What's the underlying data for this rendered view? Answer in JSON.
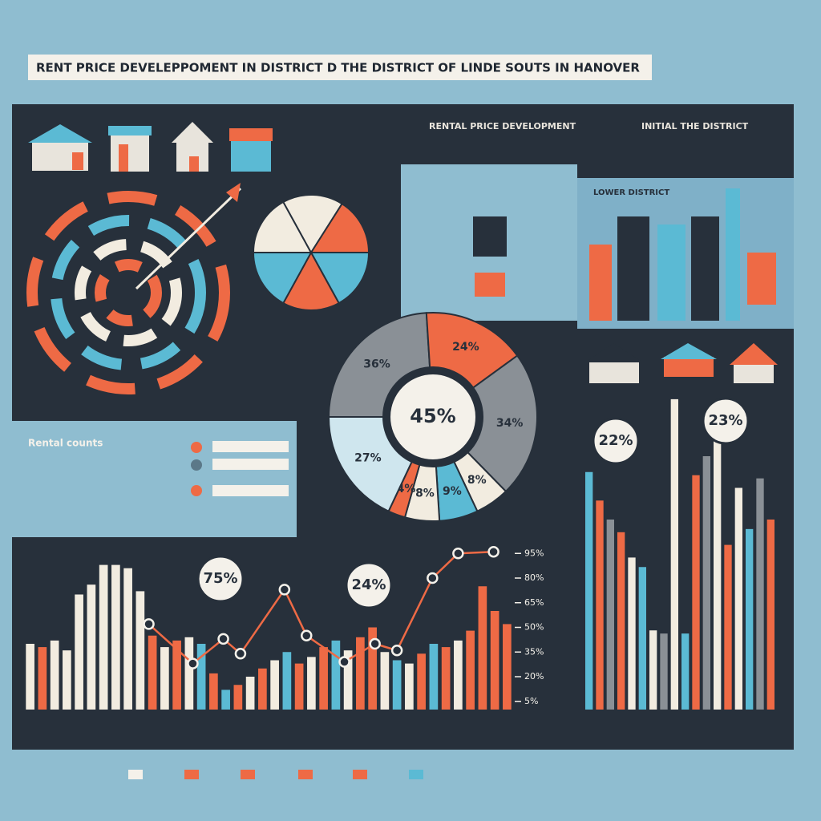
{
  "header": {
    "title": "RENT PRICE DEVELEPPOMENT IN DISTRICT D THE DISTRICT OF LINDE SOUTS IN HANOVER"
  },
  "panels": {
    "rental_heading": "RENTAL PRICE DEVELOPMENT",
    "initial_heading": "INITIAL THE DISTRICT",
    "left_heading": "Rental counts",
    "district_label": "LOWER DISTRICT"
  },
  "chart_data": [
    {
      "type": "pie",
      "values": [
        17,
        17,
        16,
        17,
        16,
        17
      ],
      "colors": [
        "#f2ece0",
        "#f2ece0",
        "#ee6a45",
        "#5bbad4",
        "#ee6a45",
        "#5bbad4"
      ]
    },
    {
      "type": "donut",
      "values": [
        36,
        24,
        34,
        8,
        9,
        8,
        4,
        27
      ],
      "value_labels": [
        "36%",
        "24%",
        "34%",
        "8%",
        "9%",
        "8%",
        "4%",
        "27%"
      ],
      "colors": [
        "#8a9096",
        "#ee6a45",
        "#8a9096",
        "#f2ece0",
        "#5bbad4",
        "#f2ece0",
        "#ee6a45",
        "#cfe6ee"
      ],
      "center_label": "45%"
    },
    {
      "type": "bar",
      "values": [
        40,
        38,
        42,
        36,
        70,
        76,
        88,
        88,
        86,
        72,
        45,
        38,
        42,
        44,
        40,
        22,
        12,
        15,
        20,
        25,
        30,
        35,
        28,
        32,
        38,
        42,
        36,
        44,
        50,
        35,
        30,
        28,
        34,
        40,
        38,
        42,
        48,
        75,
        60,
        52
      ],
      "colors": [
        "#f2ece0",
        "#ee6a45",
        "#f2ece0",
        "#f2ece0",
        "#f2ece0",
        "#f2ece0",
        "#f2ece0",
        "#f2ece0",
        "#f2ece0",
        "#f2ece0",
        "#ee6a45",
        "#f2ece0",
        "#ee6a45",
        "#f2ece0",
        "#5bbad4",
        "#ee6a45",
        "#5bbad4",
        "#ee6a45",
        "#f2ece0",
        "#ee6a45",
        "#f2ece0",
        "#5bbad4",
        "#ee6a45",
        "#f2ece0",
        "#ee6a45",
        "#5bbad4",
        "#f2ece0",
        "#ee6a45",
        "#ee6a45",
        "#f2ece0",
        "#5bbad4",
        "#f2ece0",
        "#ee6a45",
        "#5bbad4",
        "#ee6a45",
        "#f2ece0",
        "#ee6a45",
        "#ee6a45",
        "#ee6a45",
        "#ee6a45"
      ],
      "line": {
        "x": [
          10.2,
          13.8,
          16.3,
          17.7,
          21.3,
          23.1,
          26.2,
          28.7,
          30.5,
          33.4,
          35.5,
          38.4
        ],
        "values": [
          52,
          28,
          43,
          34,
          73,
          45,
          29,
          40,
          36,
          80,
          95,
          96
        ]
      },
      "xlim": [
        0,
        40
      ],
      "ylim": [
        0,
        100
      ],
      "yticks": [
        {
          "value": 5,
          "label": "5%"
        },
        {
          "value": 20,
          "label": "20%"
        },
        {
          "value": 35,
          "label": "35%"
        },
        {
          "value": 50,
          "label": "50%"
        },
        {
          "value": 65,
          "label": "65%"
        },
        {
          "value": 80,
          "label": "80%"
        },
        {
          "value": 95,
          "label": "95%"
        }
      ],
      "annotations": [
        "75%",
        "24%"
      ]
    },
    {
      "type": "bar",
      "values": [
        75,
        66,
        60,
        56,
        48,
        45,
        25,
        24,
        98,
        24,
        74,
        80,
        88,
        52,
        70,
        57,
        73,
        60
      ],
      "colors": [
        "#5bbad4",
        "#ee6a45",
        "#8a9096",
        "#ee6a45",
        "#f2ece0",
        "#5bbad4",
        "#f2ece0",
        "#8a9096",
        "#f2ece0",
        "#5bbad4",
        "#ee6a45",
        "#8a9096",
        "#f2ece0",
        "#ee6a45",
        "#f2ece0",
        "#5bbad4",
        "#8a9096",
        "#ee6a45"
      ],
      "ylim": [
        0,
        100
      ],
      "annotations": [
        "22%",
        "23%"
      ]
    }
  ]
}
